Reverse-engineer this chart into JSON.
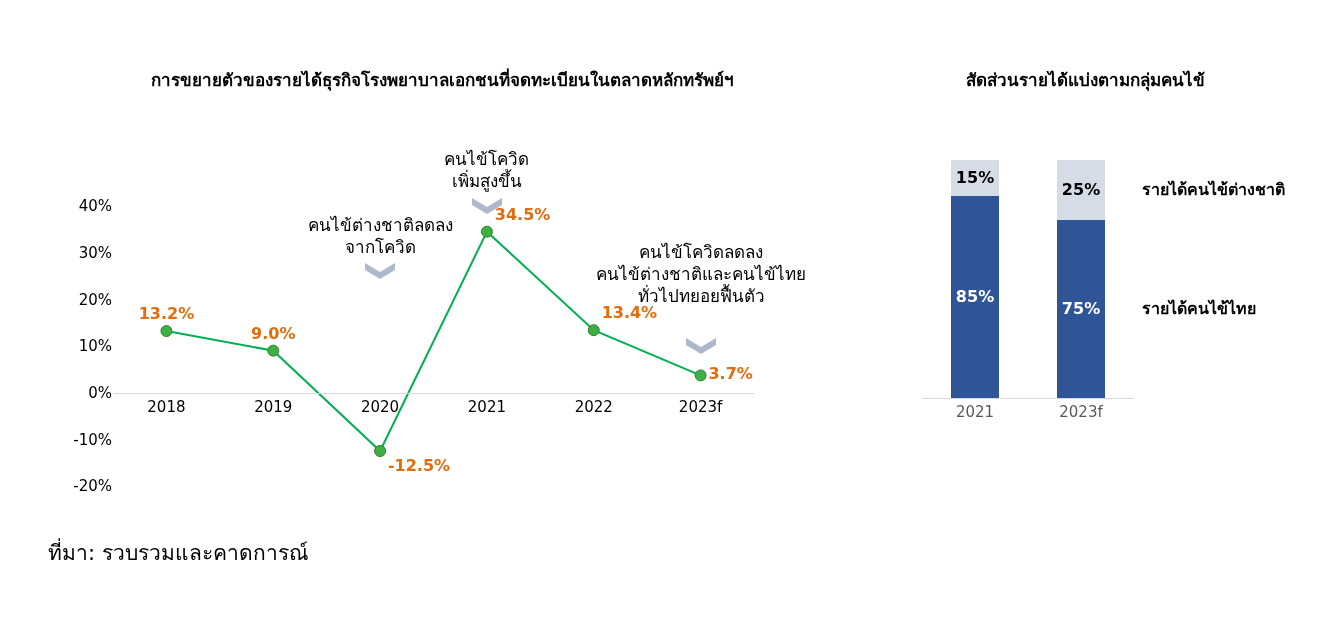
{
  "chart_data": [
    {
      "type": "line",
      "title": "การขยายตัวของรายได้ธุรกิจโรงพยาบาลเอกชนที่จดทะเบียนในตลาดหลักทรัพย์ฯ",
      "categories": [
        "2018",
        "2019",
        "2020",
        "2021",
        "2022",
        "2023f"
      ],
      "values": [
        13.2,
        9.0,
        -12.5,
        34.5,
        13.4,
        3.7
      ],
      "value_labels": [
        "13.2%",
        "9.0%",
        "-12.5%",
        "34.5%",
        "13.4%",
        "3.7%"
      ],
      "color": "#00b050",
      "marker": "circle",
      "ylim": [
        -20,
        40
      ],
      "yticks": [
        {
          "value": -20,
          "label": "-20%"
        },
        {
          "value": -10,
          "label": "-10%"
        },
        {
          "value": 0,
          "label": "0%"
        },
        {
          "value": 10,
          "label": "10%"
        },
        {
          "value": 20,
          "label": "20%"
        },
        {
          "value": 30,
          "label": "30%"
        },
        {
          "value": 40,
          "label": "40%"
        }
      ],
      "annotations": [
        {
          "text": "คนไข้ต่างชาติลดลง\nจากโควิด",
          "x": "2020",
          "y": 26
        },
        {
          "text": "คนไข้โควิด\nเพิ่มสูงขึ้น",
          "x": "2021",
          "y": 40
        },
        {
          "text": "คนไข้โควิดลดลง\nคนไข้ต่างชาติและคนไข้ไทย\nทั่วไปทยอยฟื้นตัว",
          "x": "2023f",
          "y": 10
        },
        "ที่มา: รวบรวมและคาดการณ์"
      ]
    },
    {
      "type": "bar",
      "stacked": true,
      "title": "สัดส่วนรายได้แบ่งตามกลุ่มคนไข้",
      "categories": [
        "2021",
        "2023f"
      ],
      "ylim": [
        0,
        100
      ],
      "tick_labels": "x",
      "series": [
        {
          "name": "รายได้คนไข้ไทย",
          "color": "#2f5597",
          "values": [
            85,
            75
          ],
          "value_labels": [
            "85%",
            "75%"
          ]
        },
        {
          "name": "รายได้คนไข้ต่างชาติ",
          "color": "#d6dce5",
          "values": [
            15,
            25
          ],
          "value_labels": [
            "15%",
            "25%"
          ]
        }
      ]
    }
  ]
}
